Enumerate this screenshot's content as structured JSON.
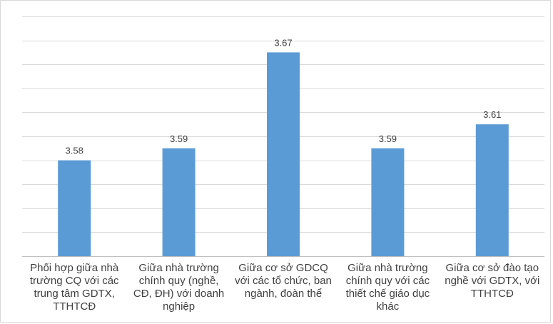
{
  "chart_data": {
    "type": "bar",
    "categories": [
      "Phối hợp giữa nhà trường CQ với các trung tâm GDTX, TTHTCĐ",
      "Giữa nhà trường chính quy (nghề, CĐ, ĐH) với doanh nghiệp",
      "Giữa cơ sở GDCQ với các tổ chức, ban ngành, đoàn thể",
      "Giữa nhà trường chính quy với các thiết chế giáo dục khác",
      "Giữa cơ sở đào tạo nghề với GDTX, với TTHTCĐ"
    ],
    "values": [
      3.58,
      3.59,
      3.67,
      3.59,
      3.61
    ],
    "data_labels": [
      "3.58",
      "3.59",
      "3.67",
      "3.59",
      "3.61"
    ],
    "ylim": [
      3.5,
      3.7
    ],
    "gridlines": true,
    "bar_color": "#5b9bd5",
    "title": "",
    "xlabel": "",
    "ylabel": ""
  }
}
